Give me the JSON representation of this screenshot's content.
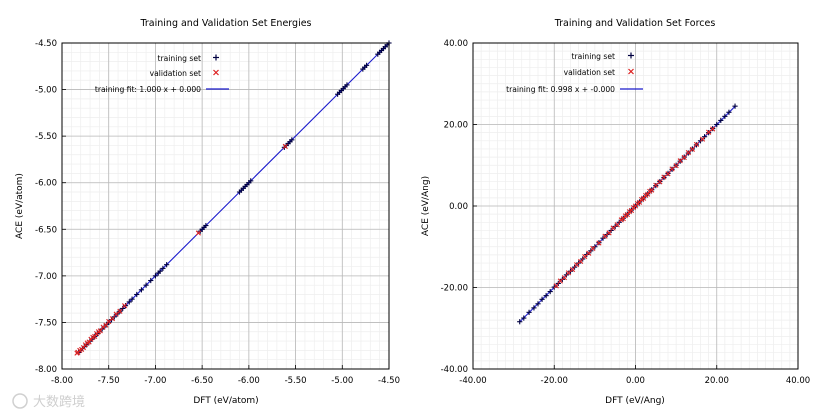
{
  "chart_data": [
    {
      "type": "scatter",
      "title": "Training and Validation Set Energies",
      "xlabel": "DFT (eV/atom)",
      "ylabel": "ACE (eV/atom)",
      "xlim": [
        -8.0,
        -4.5
      ],
      "ylim": [
        -8.0,
        -4.5
      ],
      "xticks": [
        -8.0,
        -7.5,
        -7.0,
        -6.5,
        -6.0,
        -5.5,
        -5.0,
        -4.5
      ],
      "yticks": [
        -8.0,
        -7.5,
        -7.0,
        -6.5,
        -6.0,
        -5.5,
        -5.0,
        -4.5
      ],
      "x_tick_labels": [
        "-8.00",
        "-7.50",
        "-7.00",
        "-6.50",
        "-6.00",
        "-5.50",
        "-5.00",
        "-4.50"
      ],
      "y_tick_labels": [
        "-8.00",
        "-7.50",
        "-7.00",
        "-6.50",
        "-6.00",
        "-5.50",
        "-5.00",
        "-4.50"
      ],
      "grid": true,
      "legend_position": "top-left",
      "series": [
        {
          "name": "training set",
          "marker": "+",
          "color": "#000040",
          "x": [
            -7.82,
            -7.8,
            -7.78,
            -7.76,
            -7.74,
            -7.72,
            -7.7,
            -7.68,
            -7.65,
            -7.62,
            -7.6,
            -7.57,
            -7.55,
            -7.52,
            -7.5,
            -7.47,
            -7.44,
            -7.41,
            -7.38,
            -7.35,
            -7.32,
            -7.28,
            -7.25,
            -7.2,
            -7.15,
            -7.1,
            -7.05,
            -7.0,
            -6.97,
            -6.95,
            -6.92,
            -6.88,
            -6.52,
            -6.5,
            -6.48,
            -6.46,
            -6.1,
            -6.08,
            -6.06,
            -6.04,
            -6.02,
            -6.0,
            -5.98,
            -5.62,
            -5.6,
            -5.58,
            -5.56,
            -5.54,
            -5.05,
            -5.03,
            -5.01,
            -4.99,
            -4.97,
            -4.95,
            -4.78,
            -4.76,
            -4.74,
            -4.62,
            -4.6,
            -4.58,
            -4.56,
            -4.54,
            -4.52,
            -4.5
          ],
          "y": [
            -7.82,
            -7.8,
            -7.78,
            -7.76,
            -7.74,
            -7.72,
            -7.7,
            -7.68,
            -7.65,
            -7.62,
            -7.6,
            -7.57,
            -7.55,
            -7.52,
            -7.5,
            -7.47,
            -7.44,
            -7.41,
            -7.38,
            -7.35,
            -7.32,
            -7.28,
            -7.25,
            -7.2,
            -7.15,
            -7.1,
            -7.05,
            -7.0,
            -6.97,
            -6.95,
            -6.92,
            -6.88,
            -6.52,
            -6.5,
            -6.48,
            -6.46,
            -6.1,
            -6.08,
            -6.06,
            -6.04,
            -6.02,
            -6.0,
            -5.98,
            -5.62,
            -5.6,
            -5.58,
            -5.56,
            -5.54,
            -5.05,
            -5.03,
            -5.01,
            -4.99,
            -4.97,
            -4.95,
            -4.78,
            -4.76,
            -4.74,
            -4.62,
            -4.6,
            -4.58,
            -4.56,
            -4.54,
            -4.52,
            -4.5
          ]
        },
        {
          "name": "validation set",
          "marker": "x",
          "color": "#dd2222",
          "x": [
            -7.84,
            -7.83,
            -7.81,
            -7.79,
            -7.77,
            -7.75,
            -7.73,
            -7.71,
            -7.69,
            -7.67,
            -7.65,
            -7.63,
            -7.61,
            -7.59,
            -7.56,
            -7.53,
            -7.5,
            -7.46,
            -7.42,
            -7.38,
            -7.33,
            -6.54,
            -5.61
          ],
          "y": [
            -7.83,
            -7.82,
            -7.8,
            -7.79,
            -7.77,
            -7.74,
            -7.72,
            -7.71,
            -7.68,
            -7.66,
            -7.65,
            -7.62,
            -7.6,
            -7.59,
            -7.55,
            -7.53,
            -7.49,
            -7.46,
            -7.41,
            -7.38,
            -7.32,
            -6.54,
            -5.61
          ]
        },
        {
          "name": "training fit: 1.000 x + 0.000",
          "type": "line",
          "color": "#1a1acc",
          "x": [
            -7.83,
            -4.5
          ],
          "y": [
            -7.83,
            -4.5
          ]
        }
      ]
    },
    {
      "type": "scatter",
      "title": "Training and Validation Set Forces",
      "xlabel": "DFT (eV/Ang)",
      "ylabel": "ACE (eV/Ang)",
      "xlim": [
        -40.0,
        40.0
      ],
      "ylim": [
        -40.0,
        40.0
      ],
      "xticks": [
        -40,
        -20,
        0,
        20,
        40
      ],
      "yticks": [
        -40,
        -20,
        0,
        20,
        40
      ],
      "x_tick_labels": [
        "-40.00",
        "-20.00",
        "0.00",
        "20.00",
        "40.00"
      ],
      "y_tick_labels": [
        "-40.00",
        "-20.00",
        "0.00",
        "20.00",
        "40.00"
      ],
      "grid": true,
      "legend_position": "top-left",
      "series": [
        {
          "name": "training set",
          "marker": "+",
          "color": "#000040",
          "x": [
            -28.5,
            -27.5,
            -26.2,
            -25.0,
            -24.0,
            -23.0,
            -22.0,
            -21.0,
            -20.0,
            -19.0,
            -18.0,
            -17.0,
            -16.0,
            -15.0,
            -14.0,
            -13.0,
            -12.0,
            -11.0,
            -10.0,
            -9.0,
            -8.0,
            -7.0,
            -6.0,
            -5.0,
            -4.0,
            -3.0,
            -2.0,
            -1.0,
            0.0,
            1.0,
            2.0,
            3.0,
            4.0,
            5.0,
            6.0,
            7.0,
            8.0,
            9.0,
            10.0,
            11.0,
            12.0,
            13.0,
            14.0,
            15.0,
            16.0,
            17.0,
            18.0,
            19.0,
            20.0,
            21.0,
            22.0,
            23.0,
            24.5
          ],
          "y": [
            -28.4,
            -27.5,
            -26.1,
            -25.0,
            -24.0,
            -22.9,
            -22.0,
            -21.0,
            -19.9,
            -19.0,
            -18.0,
            -16.9,
            -16.0,
            -15.0,
            -14.0,
            -13.0,
            -11.9,
            -11.0,
            -10.0,
            -9.0,
            -7.9,
            -7.0,
            -6.0,
            -5.0,
            -4.0,
            -3.0,
            -2.0,
            -1.0,
            0.0,
            1.0,
            2.0,
            3.0,
            4.0,
            5.0,
            6.0,
            7.0,
            8.0,
            9.0,
            10.0,
            11.0,
            12.0,
            13.0,
            14.0,
            15.0,
            16.0,
            17.0,
            18.0,
            19.0,
            20.0,
            21.0,
            22.0,
            23.0,
            24.5
          ]
        },
        {
          "name": "validation set",
          "marker": "x",
          "color": "#dd2222",
          "x": [
            -19.5,
            -18.5,
            -17.5,
            -16.5,
            -15.5,
            -14.5,
            -13.5,
            -12.5,
            -11.5,
            -10.5,
            -9.0,
            -7.5,
            -6.5,
            -5.5,
            -4.5,
            -3.5,
            -3.0,
            -2.5,
            -2.0,
            -1.5,
            -1.0,
            -0.5,
            0.0,
            0.5,
            1.0,
            1.5,
            2.0,
            2.5,
            3.0,
            3.5,
            4.0,
            5.0,
            6.0,
            7.0,
            8.0,
            9.0,
            10.0,
            11.0,
            12.0,
            13.0,
            14.0,
            15.0,
            16.5,
            18.0,
            19.0
          ],
          "y": [
            -19.6,
            -18.4,
            -17.6,
            -16.4,
            -15.6,
            -14.4,
            -13.6,
            -12.4,
            -11.6,
            -10.4,
            -9.1,
            -7.4,
            -6.6,
            -5.4,
            -4.6,
            -3.4,
            -3.1,
            -2.4,
            -2.1,
            -1.4,
            -1.1,
            -0.4,
            0.0,
            0.6,
            0.9,
            1.6,
            1.9,
            2.6,
            2.9,
            3.6,
            3.9,
            5.1,
            5.9,
            7.1,
            7.9,
            9.1,
            9.9,
            11.1,
            11.9,
            13.1,
            13.9,
            15.1,
            16.4,
            18.1,
            18.9
          ]
        },
        {
          "name": "training fit: 0.998 x + -0.000",
          "type": "line",
          "color": "#1a1acc",
          "x": [
            -28.5,
            24.5
          ],
          "y": [
            -28.443,
            24.451
          ]
        }
      ]
    }
  ],
  "watermark": {
    "text": "大数跨境"
  }
}
